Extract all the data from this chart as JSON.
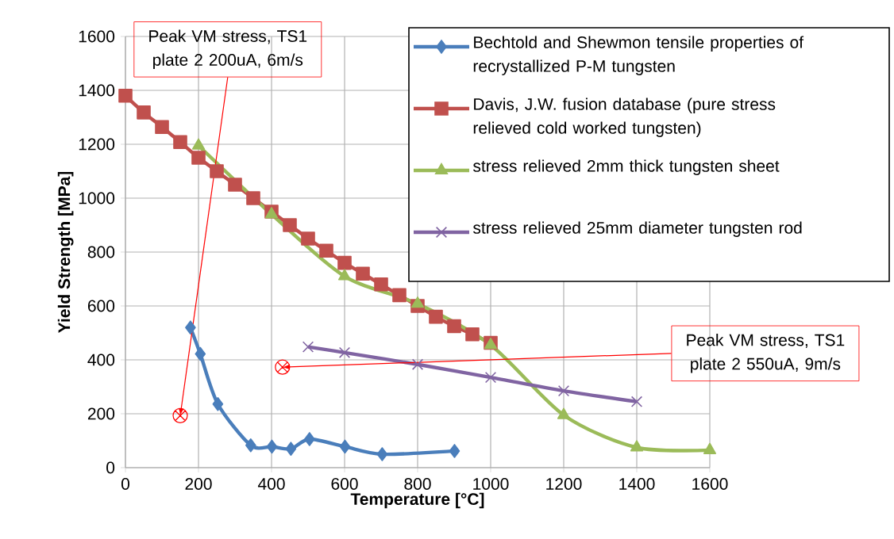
{
  "chart_data": {
    "type": "line",
    "xlabel": "Temperature [°C]",
    "ylabel": "Yield Strength [MPa]",
    "xlim": [
      0,
      1600
    ],
    "ylim": [
      0,
      1600
    ],
    "xticks": [
      0,
      200,
      400,
      600,
      800,
      1000,
      1200,
      1400,
      1600
    ],
    "yticks": [
      0,
      200,
      400,
      600,
      800,
      1000,
      1200,
      1400,
      1600
    ],
    "grid": true,
    "legend": "top right",
    "line_style": "solid",
    "series": [
      {
        "name": "Bechtold and Shewmon tensile properties of recrystallized P-M tungsten",
        "color": "#4a7ebb",
        "marker": "diamond",
        "x": [
          178,
          205,
          253,
          343,
          401,
          453,
          504,
          601,
          703,
          901
        ],
        "values": [
          520,
          422,
          236,
          83,
          78,
          70,
          106,
          78,
          50,
          62
        ]
      },
      {
        "name": "Davis, J.W. fusion database (pure stress relieved cold worked tungsten)",
        "color": "#c0504d",
        "marker": "square",
        "x": [
          0,
          50,
          100,
          150,
          200,
          250,
          300,
          350,
          400,
          450,
          500,
          550,
          600,
          650,
          700,
          750,
          800,
          850,
          900,
          950,
          1000
        ],
        "values": [
          1380,
          1318,
          1264,
          1208,
          1150,
          1100,
          1050,
          1000,
          950,
          900,
          850,
          805,
          760,
          720,
          680,
          640,
          600,
          560,
          525,
          495,
          463
        ]
      },
      {
        "name": "stress relieved 2mm thick tungsten sheet",
        "color": "#9bbb59",
        "marker": "triangle",
        "x": [
          200,
          400,
          600,
          800,
          1000,
          1200,
          1400,
          1600
        ],
        "values": [
          1195,
          940,
          710,
          608,
          455,
          195,
          75,
          65
        ]
      },
      {
        "name": "stress relieved 25mm diameter tungsten rod",
        "color": "#8064a2",
        "marker": "cross",
        "x": [
          500,
          600,
          800,
          1000,
          1200,
          1400
        ],
        "values": [
          448,
          427,
          383,
          335,
          285,
          245
        ]
      }
    ],
    "annotations": [
      {
        "text": "Peak VM stress, TS1 plate 2 200uA, 6m/s",
        "x": 150,
        "y": 193
      },
      {
        "text": "Peak VM stress, TS1 plate 2 550uA, 9m/s",
        "x": 430,
        "y": 373
      }
    ]
  }
}
